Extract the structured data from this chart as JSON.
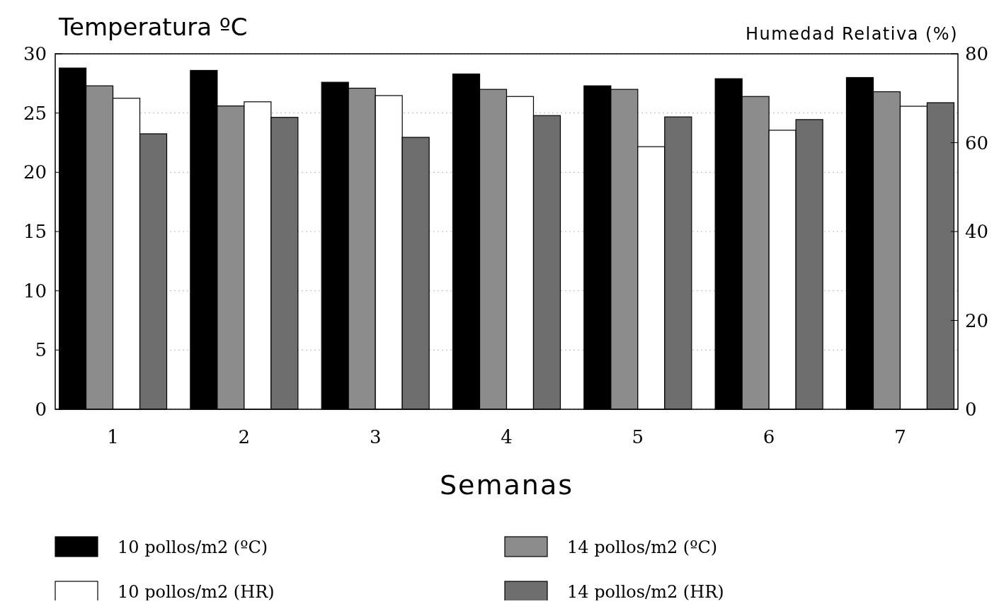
{
  "chart_data": {
    "type": "bar",
    "title": "Temperatura ºC",
    "xlabel": "Semanas",
    "y2label": "Humedad Relativa (%)",
    "categories": [
      "1",
      "2",
      "3",
      "4",
      "5",
      "6",
      "7"
    ],
    "series": [
      {
        "name": "10 pollos/m2 (ºC)",
        "color": "#000000",
        "values": [
          28.8,
          28.6,
          27.6,
          28.3,
          27.3,
          27.9,
          28.0
        ]
      },
      {
        "name": "14 pollos/m2 (ºC)",
        "color": "#8c8c8c",
        "values": [
          27.3,
          25.6,
          27.1,
          27.0,
          27.0,
          26.4,
          26.8
        ]
      },
      {
        "name": "10 pollos/m2 (HR)",
        "color": "#ffffff",
        "axis": "y2",
        "values": [
          70.0,
          69.2,
          70.6,
          70.4,
          59.1,
          62.8,
          68.2
        ]
      },
      {
        "name": "14 pollos/m2 (HR)",
        "color": "#6e6e6e",
        "axis": "y2",
        "values": [
          62.0,
          65.7,
          61.2,
          66.1,
          65.8,
          65.2,
          69.0
        ]
      }
    ],
    "ylim": [
      0,
      30
    ],
    "yticks": [
      0,
      5,
      10,
      15,
      20,
      25,
      30
    ],
    "y2lim": [
      0,
      80
    ],
    "y2ticks": [
      0,
      20,
      40,
      60,
      80
    ],
    "grid": "y",
    "legend": "bottom"
  }
}
